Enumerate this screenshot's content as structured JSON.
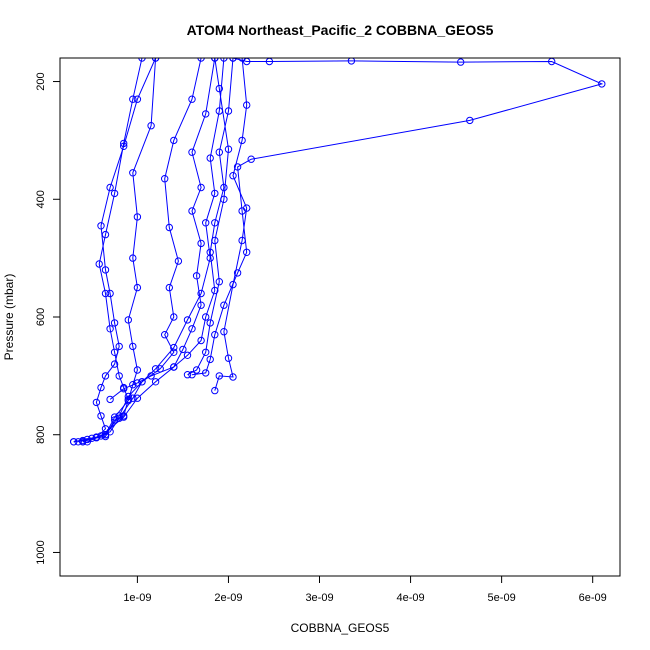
{
  "chart_data": {
    "type": "line",
    "title": "ATOM4 Northeast_Pacific_2 COBBNA_GEOS5",
    "xlabel": "COBBNA_GEOS5",
    "ylabel": "Pressure (mbar)",
    "xlim": [
      1.5e-10,
      6.3e-09
    ],
    "ylim": [
      1040,
      160
    ],
    "y_reversed": true,
    "x_ticks": [
      1e-09,
      2e-09,
      3e-09,
      4e-09,
      5e-09,
      6e-09
    ],
    "x_tick_labels": [
      "1e-09",
      "2e-09",
      "3e-09",
      "4e-09",
      "5e-09",
      "6e-09"
    ],
    "y_ticks": [
      200,
      400,
      600,
      800,
      1000
    ],
    "y_tick_labels": [
      "200",
      "400",
      "600",
      "800",
      "1000"
    ],
    "marker": "open-circle",
    "color": "#0000ff",
    "grid": false,
    "series": [
      {
        "points": [
          [
            3e-10,
            812
          ],
          [
            4e-10,
            810
          ],
          [
            5.5e-10,
            805
          ],
          [
            6.5e-10,
            790
          ],
          [
            6e-10,
            768
          ],
          [
            5.5e-10,
            745
          ],
          [
            6e-10,
            720
          ],
          [
            6.5e-10,
            700
          ],
          [
            7.5e-10,
            680
          ],
          [
            8e-10,
            650
          ],
          [
            7.5e-10,
            610
          ],
          [
            7e-10,
            560
          ],
          [
            6.5e-10,
            520
          ],
          [
            6e-10,
            445
          ],
          [
            7e-10,
            380
          ],
          [
            8.5e-10,
            310
          ],
          [
            1e-09,
            230
          ],
          [
            1.2e-09,
            160
          ]
        ]
      },
      {
        "points": [
          [
            3.5e-10,
            812
          ],
          [
            4.5e-10,
            808
          ],
          [
            6.5e-10,
            803
          ],
          [
            7.5e-10,
            775
          ],
          [
            8.5e-10,
            768
          ],
          [
            9e-10,
            740
          ],
          [
            8.5e-10,
            720
          ],
          [
            8e-10,
            700
          ],
          [
            7.5e-10,
            660
          ],
          [
            7e-10,
            620
          ],
          [
            6.5e-10,
            560
          ],
          [
            5.8e-10,
            510
          ],
          [
            6.5e-10,
            460
          ],
          [
            7.5e-10,
            390
          ],
          [
            8.5e-10,
            305
          ],
          [
            9.5e-10,
            230
          ],
          [
            1.05e-09,
            160
          ]
        ]
      },
      {
        "points": [
          [
            4e-10,
            812
          ],
          [
            5e-10,
            806
          ],
          [
            6.5e-10,
            800
          ],
          [
            7.5e-10,
            770
          ],
          [
            9e-10,
            742
          ],
          [
            9.5e-10,
            715
          ],
          [
            1e-09,
            690
          ],
          [
            9.5e-10,
            650
          ],
          [
            9e-10,
            605
          ],
          [
            1e-09,
            550
          ],
          [
            9.5e-10,
            500
          ],
          [
            1e-09,
            430
          ],
          [
            9.5e-10,
            355
          ],
          [
            1.15e-09,
            275
          ],
          [
            1.2e-09,
            160
          ]
        ]
      },
      {
        "points": [
          [
            3e-10,
            812
          ],
          [
            5.5e-10,
            804
          ],
          [
            7e-10,
            795
          ],
          [
            8e-10,
            772
          ],
          [
            9.5e-10,
            738
          ],
          [
            1.05e-09,
            710
          ],
          [
            1.25e-09,
            688
          ],
          [
            1.4e-09,
            660
          ],
          [
            1.3e-09,
            630
          ],
          [
            1.4e-09,
            600
          ],
          [
            1.35e-09,
            550
          ],
          [
            1.45e-09,
            505
          ],
          [
            1.35e-09,
            448
          ],
          [
            1.3e-09,
            365
          ],
          [
            1.4e-09,
            300
          ],
          [
            1.6e-09,
            230
          ],
          [
            1.7e-09,
            160
          ]
        ]
      },
      {
        "points": [
          [
            4.5e-10,
            812
          ],
          [
            6e-10,
            802
          ],
          [
            8.5e-10,
            770
          ],
          [
            1e-09,
            738
          ],
          [
            1.2e-09,
            710
          ],
          [
            1.4e-09,
            685
          ],
          [
            1.5e-09,
            655
          ],
          [
            1.6e-09,
            620
          ],
          [
            1.7e-09,
            580
          ],
          [
            1.65e-09,
            530
          ],
          [
            1.7e-09,
            475
          ],
          [
            1.6e-09,
            420
          ],
          [
            1.7e-09,
            380
          ],
          [
            1.6e-09,
            320
          ],
          [
            1.75e-09,
            255
          ],
          [
            1.85e-09,
            160
          ]
        ]
      },
      {
        "points": [
          [
            4e-10,
            812
          ],
          [
            6.5e-10,
            800
          ],
          [
            8e-10,
            768
          ],
          [
            9e-10,
            735
          ],
          [
            1.05e-09,
            710
          ],
          [
            1.2e-09,
            688
          ],
          [
            1.4e-09,
            652
          ],
          [
            1.55e-09,
            605
          ],
          [
            1.7e-09,
            560
          ],
          [
            1.8e-09,
            500
          ],
          [
            1.75e-09,
            440
          ],
          [
            1.85e-09,
            390
          ],
          [
            1.8e-09,
            330
          ],
          [
            1.9e-09,
            250
          ],
          [
            1.95e-09,
            160
          ]
        ]
      },
      {
        "points": [
          [
            7e-10,
            740
          ],
          [
            8.5e-10,
            722
          ],
          [
            1e-09,
            712
          ],
          [
            1.15e-09,
            700
          ],
          [
            1.4e-09,
            685
          ],
          [
            1.55e-09,
            665
          ],
          [
            1.7e-09,
            640
          ],
          [
            1.75e-09,
            600
          ],
          [
            1.85e-09,
            555
          ],
          [
            1.8e-09,
            490
          ],
          [
            1.85e-09,
            440
          ],
          [
            1.95e-09,
            380
          ],
          [
            1.9e-09,
            320
          ],
          [
            2e-09,
            250
          ],
          [
            2.05e-09,
            160
          ]
        ]
      },
      {
        "points": [
          [
            1.6e-09,
            698
          ],
          [
            1.75e-09,
            695
          ],
          [
            1.8e-09,
            672
          ],
          [
            1.85e-09,
            630
          ],
          [
            1.95e-09,
            580
          ],
          [
            2.1e-09,
            525
          ],
          [
            2.2e-09,
            490
          ],
          [
            2.15e-09,
            420
          ],
          [
            2.1e-09,
            345
          ],
          [
            2.25e-09,
            332
          ],
          [
            4.65e-09,
            266
          ],
          [
            6.1e-09,
            204
          ],
          [
            5.55e-09,
            166
          ],
          [
            4.55e-09,
            167
          ],
          [
            3.35e-09,
            165
          ],
          [
            2.45e-09,
            166
          ],
          [
            2.2e-09,
            166
          ],
          [
            2.05e-09,
            160
          ]
        ]
      },
      {
        "points": [
          [
            1.85e-09,
            725
          ],
          [
            1.9e-09,
            700
          ],
          [
            2.05e-09,
            702
          ],
          [
            2e-09,
            670
          ],
          [
            1.95e-09,
            625
          ],
          [
            2.05e-09,
            545
          ],
          [
            2.15e-09,
            470
          ],
          [
            2.2e-09,
            415
          ],
          [
            2.05e-09,
            360
          ],
          [
            2.15e-09,
            300
          ],
          [
            2.2e-09,
            240
          ],
          [
            2.15e-09,
            160
          ]
        ]
      },
      {
        "points": [
          [
            1.55e-09,
            698
          ],
          [
            1.65e-09,
            690
          ],
          [
            1.75e-09,
            660
          ],
          [
            1.8e-09,
            610
          ],
          [
            1.9e-09,
            540
          ],
          [
            1.85e-09,
            470
          ],
          [
            1.95e-09,
            400
          ],
          [
            2e-09,
            315
          ],
          [
            1.9e-09,
            212
          ],
          [
            1.85e-09,
            160
          ]
        ]
      }
    ]
  }
}
